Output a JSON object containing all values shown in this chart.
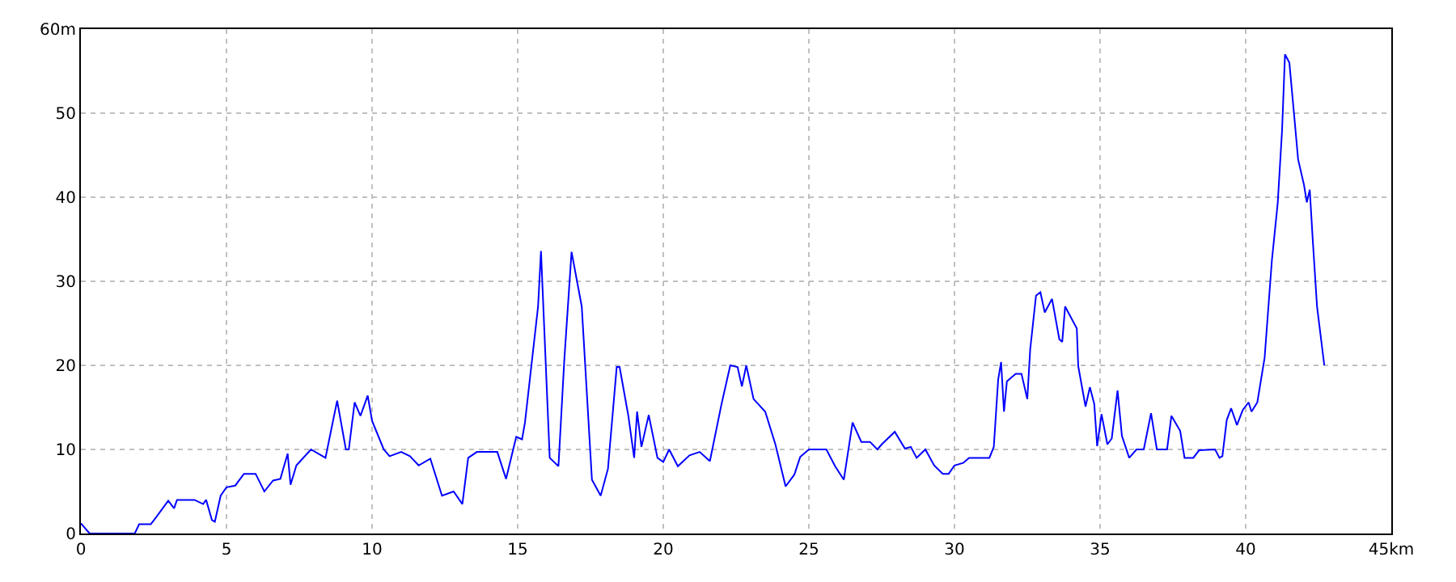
{
  "chart_data": {
    "type": "line",
    "xlim": [
      0,
      45
    ],
    "ylim": [
      0,
      60
    ],
    "xticks": [
      0,
      5,
      10,
      15,
      20,
      25,
      30,
      35,
      40,
      {
        "value": 45,
        "label": "45km"
      }
    ],
    "yticks": [
      0,
      10,
      20,
      30,
      40,
      50,
      {
        "value": 60,
        "label": "60m"
      }
    ],
    "grid": true,
    "line_style": "solid",
    "marker": "none",
    "x": [
      0,
      0.3,
      1.85,
      2.0,
      2.4,
      2.6,
      3.0,
      3.2,
      3.3,
      3.9,
      4.2,
      4.3,
      4.5,
      4.6,
      4.8,
      5.0,
      5.3,
      5.6,
      6.0,
      6.3,
      6.6,
      6.85,
      7.1,
      7.2,
      7.4,
      7.9,
      8.4,
      8.8,
      9.1,
      9.2,
      9.4,
      9.6,
      9.85,
      10.0,
      10.4,
      10.6,
      11.0,
      11.3,
      11.6,
      12.0,
      12.4,
      12.8,
      13.1,
      13.3,
      13.6,
      14.3,
      14.6,
      14.95,
      15.15,
      15.25,
      15.7,
      15.8,
      16.1,
      16.4,
      16.6,
      16.85,
      17.2,
      17.55,
      17.85,
      18.1,
      18.4,
      18.5,
      18.8,
      19.0,
      19.1,
      19.25,
      19.5,
      19.8,
      20.0,
      20.2,
      20.5,
      20.9,
      21.25,
      21.6,
      22.0,
      22.3,
      22.55,
      22.7,
      22.85,
      23.1,
      23.5,
      23.85,
      24.2,
      24.5,
      24.7,
      25.0,
      25.6,
      25.9,
      26.2,
      26.5,
      26.8,
      27.1,
      27.35,
      27.5,
      27.95,
      28.3,
      28.5,
      28.7,
      29.0,
      29.3,
      29.6,
      29.8,
      30.0,
      30.3,
      30.5,
      31.2,
      31.35,
      31.5,
      31.6,
      31.7,
      31.8,
      32.1,
      32.3,
      32.5,
      32.6,
      32.8,
      32.95,
      33.1,
      33.35,
      33.6,
      33.7,
      33.8,
      34.2,
      34.25,
      34.5,
      34.65,
      34.8,
      34.9,
      35.05,
      35.25,
      35.4,
      35.6,
      35.75,
      36.0,
      36.25,
      36.5,
      36.75,
      36.95,
      37.3,
      37.45,
      37.75,
      37.9,
      38.2,
      38.4,
      38.95,
      39.1,
      39.2,
      39.35,
      39.5,
      39.7,
      39.9,
      40.1,
      40.2,
      40.4,
      40.65,
      40.9,
      41.1,
      41.25,
      41.35,
      41.5,
      41.65,
      41.8,
      42.0,
      42.1,
      42.2,
      42.3,
      42.45,
      42.6,
      42.7
    ],
    "series": [
      {
        "color": "#0000ff",
        "values": [
          1.2,
          0,
          0,
          1.1,
          1.1,
          2,
          3.9,
          3,
          4,
          4,
          3.5,
          4,
          1.6,
          1.4,
          4.5,
          5.5,
          5.7,
          7.1,
          7.1,
          5,
          6.3,
          6.5,
          9.5,
          5.8,
          8.1,
          10,
          9,
          15.8,
          10,
          10,
          15.6,
          14,
          16.4,
          13.4,
          10,
          9.2,
          9.7,
          9.2,
          8.1,
          8.9,
          4.5,
          5,
          3.5,
          9,
          9.7,
          9.7,
          6.5,
          11.5,
          11.2,
          13.2,
          27,
          33.6,
          9,
          8,
          20.6,
          33.5,
          27,
          6.4,
          4.5,
          7.7,
          19.8,
          19.8,
          14,
          9,
          14.5,
          10.3,
          14.1,
          9,
          8.5,
          10,
          8,
          9.3,
          9.7,
          8.6,
          15.4,
          20,
          19.8,
          17.5,
          20,
          16,
          14.5,
          10.6,
          5.6,
          7,
          9.1,
          10,
          10,
          8,
          6.4,
          13.2,
          10.9,
          10.9,
          10,
          10.6,
          12.1,
          10.1,
          10.3,
          9,
          10,
          8.1,
          7.1,
          7.1,
          8.1,
          8.4,
          9,
          9,
          10.3,
          18.3,
          20.4,
          14.5,
          18.1,
          19,
          19,
          16,
          21.9,
          28.3,
          28.7,
          26.3,
          27.9,
          23.1,
          22.8,
          27,
          24.4,
          19.9,
          15.1,
          17.4,
          15.4,
          10.4,
          14.2,
          10.6,
          11.3,
          17,
          11.6,
          9,
          10,
          10,
          14.3,
          10,
          10,
          14,
          12.2,
          9,
          9,
          9.9,
          10,
          9,
          9.2,
          13.5,
          14.9,
          12.9,
          14.7,
          15.6,
          14.5,
          15.6,
          20.9,
          32.5,
          39.3,
          48,
          57,
          56,
          50.3,
          44.5,
          41.5,
          39.4,
          40.9,
          35.1,
          27,
          22.8,
          20
        ]
      }
    ]
  }
}
